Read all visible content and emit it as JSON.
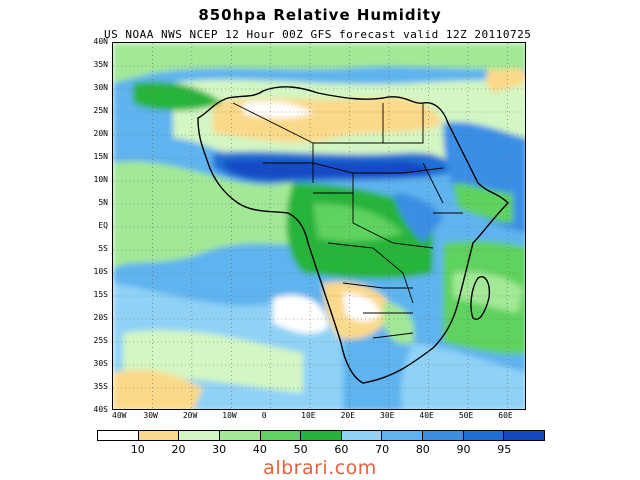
{
  "title": "850hpa Relative Humidity",
  "subtitle": "US NOAA NWS NCEP 12 Hour 00Z GFS forecast valid 12Z 20110725",
  "map": {
    "region": "Africa",
    "variable": "850 hPa relative humidity",
    "lat_range": [
      -40,
      40
    ],
    "lon_range": [
      -40,
      65
    ],
    "lat_ticks": [
      "40N",
      "35N",
      "30N",
      "25N",
      "20N",
      "15N",
      "10N",
      "5N",
      "EQ",
      "5S",
      "10S",
      "15S",
      "20S",
      "25S",
      "30S",
      "35S",
      "40S"
    ],
    "lon_ticks": [
      "40W",
      "30W",
      "20W",
      "10W",
      "0",
      "10E",
      "20E",
      "30E",
      "40E",
      "50E",
      "60E"
    ],
    "gridlines": "dotted"
  },
  "colorbar": {
    "labels": [
      "10",
      "20",
      "30",
      "40",
      "50",
      "60",
      "70",
      "80",
      "90",
      "95"
    ],
    "colors": [
      "#ffffff",
      "#fbd98a",
      "#d3f6c3",
      "#a3e896",
      "#5fd25f",
      "#25b43a",
      "#8fd2f6",
      "#5fb3ef",
      "#3a8ee6",
      "#1f6fd6",
      "#1548c4"
    ]
  },
  "watermark": "albrari.com"
}
